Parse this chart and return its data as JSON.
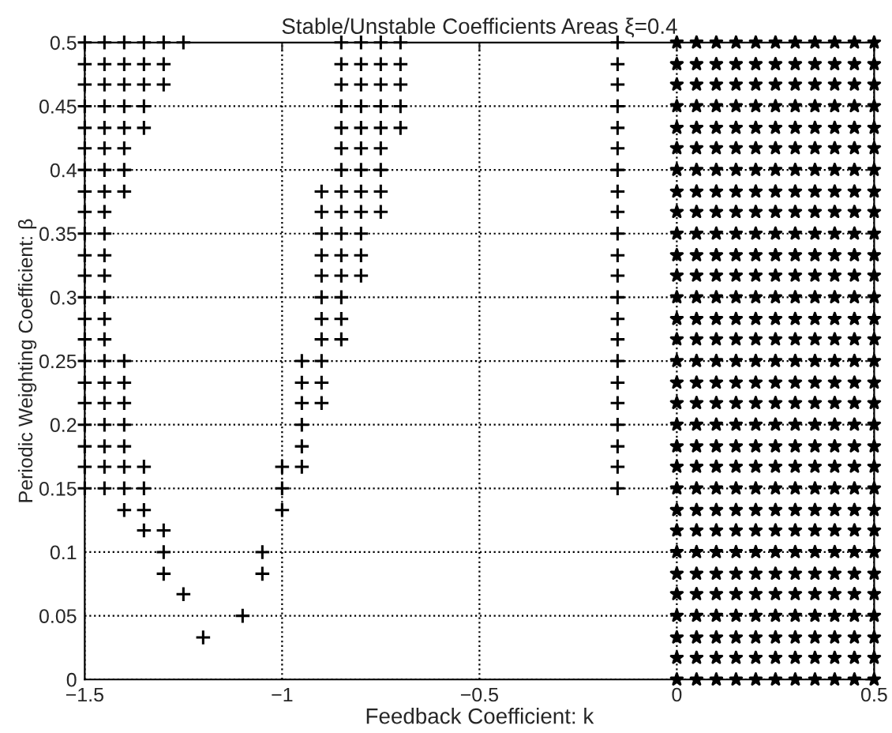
{
  "chart_data": {
    "type": "scatter",
    "title": "Stable/Unstable Coefficients Areas ξ=0.4",
    "xlabel": "Feedback Coefficient: k",
    "ylabel": "Periodic Weighting Coefficient: β",
    "xlim": [
      -1.5,
      0.5
    ],
    "ylim": [
      0,
      0.5
    ],
    "xticks": [
      {
        "value": -1.5,
        "label": "−1.5"
      },
      {
        "value": -1,
        "label": "−1"
      },
      {
        "value": -0.5,
        "label": "−0.5"
      },
      0,
      0.5
    ],
    "yticks": [
      0,
      0.05,
      0.1,
      0.15,
      0.2,
      0.25,
      0.3,
      0.35,
      0.4,
      0.45,
      0.5
    ],
    "grid": true,
    "series": [
      {
        "color": "#000000",
        "marker": "cross",
        "x": [
          -1.5,
          -1.45,
          -1.4,
          -1.35,
          -1.3,
          -1.25,
          -1.5,
          -1.45,
          -1.4,
          -1.35,
          -1.3,
          -1.5,
          -1.45,
          -1.4,
          -1.35,
          -1.3,
          -1.5,
          -1.45,
          -1.4,
          -1.35,
          -1.5,
          -1.45,
          -1.4,
          -1.35,
          -1.5,
          -1.45,
          -1.4,
          -1.5,
          -1.45,
          -1.4,
          -1.5,
          -1.45,
          -1.4,
          -1.5,
          -1.45,
          -1.5,
          -1.45,
          -1.5,
          -1.45,
          -1.5,
          -1.45,
          -1.5,
          -1.45,
          -1.5,
          -1.45,
          -1.5,
          -1.45,
          -1.5,
          -1.45,
          -1.4,
          -1.5,
          -1.45,
          -1.4,
          -1.5,
          -1.45,
          -1.4,
          -1.5,
          -1.45,
          -1.4,
          -1.5,
          -1.45,
          -1.4,
          -1.5,
          -1.45,
          -1.4,
          -1.35,
          -1.5,
          -1.45,
          -1.4,
          -1.35,
          -1.4,
          -1.35,
          -1.35,
          -1.3,
          -1.3,
          -1.3,
          -1.25,
          -1.1,
          -1.2
        ],
        "values": [
          0.5,
          0.5,
          0.5,
          0.5,
          0.5,
          0.5,
          0.483,
          0.483,
          0.483,
          0.483,
          0.483,
          0.467,
          0.467,
          0.467,
          0.467,
          0.467,
          0.45,
          0.45,
          0.45,
          0.45,
          0.433,
          0.433,
          0.433,
          0.433,
          0.417,
          0.417,
          0.417,
          0.4,
          0.4,
          0.4,
          0.383,
          0.383,
          0.383,
          0.367,
          0.367,
          0.35,
          0.35,
          0.333,
          0.333,
          0.317,
          0.317,
          0.3,
          0.3,
          0.283,
          0.283,
          0.267,
          0.267,
          0.25,
          0.25,
          0.25,
          0.233,
          0.233,
          0.233,
          0.217,
          0.217,
          0.217,
          0.2,
          0.2,
          0.2,
          0.183,
          0.183,
          0.183,
          0.167,
          0.167,
          0.167,
          0.167,
          0.15,
          0.15,
          0.15,
          0.15,
          0.133,
          0.133,
          0.117,
          0.117,
          0.1,
          0.083,
          0.067,
          0.05,
          0.033
        ]
      },
      {
        "color": "#000000",
        "marker": "cross",
        "x": [
          -0.85,
          -0.8,
          -0.75,
          -0.7,
          -0.85,
          -0.8,
          -0.75,
          -0.7,
          -0.85,
          -0.8,
          -0.75,
          -0.7,
          -0.85,
          -0.8,
          -0.75,
          -0.7,
          -0.85,
          -0.8,
          -0.75,
          -0.7,
          -0.85,
          -0.8,
          -0.75,
          -0.85,
          -0.8,
          -0.75,
          -0.9,
          -0.85,
          -0.8,
          -0.75,
          -0.9,
          -0.85,
          -0.8,
          -0.75,
          -0.9,
          -0.85,
          -0.8,
          -0.9,
          -0.85,
          -0.8,
          -0.9,
          -0.85,
          -0.8,
          -0.9,
          -0.85,
          -0.9,
          -0.85,
          -0.9,
          -0.85,
          -0.95,
          -0.9,
          -0.95,
          -0.9,
          -0.95,
          -0.9,
          -0.95,
          -0.95,
          -1,
          -0.95,
          -1,
          -1,
          -1.05,
          -1.05
        ],
        "values": [
          0.5,
          0.5,
          0.5,
          0.5,
          0.483,
          0.483,
          0.483,
          0.483,
          0.467,
          0.467,
          0.467,
          0.467,
          0.45,
          0.45,
          0.45,
          0.45,
          0.433,
          0.433,
          0.433,
          0.433,
          0.417,
          0.417,
          0.417,
          0.4,
          0.4,
          0.4,
          0.383,
          0.383,
          0.383,
          0.383,
          0.367,
          0.367,
          0.367,
          0.367,
          0.35,
          0.35,
          0.35,
          0.333,
          0.333,
          0.333,
          0.317,
          0.317,
          0.317,
          0.3,
          0.3,
          0.283,
          0.283,
          0.267,
          0.267,
          0.25,
          0.25,
          0.233,
          0.233,
          0.217,
          0.217,
          0.2,
          0.183,
          0.167,
          0.167,
          0.15,
          0.133,
          0.1,
          0.083
        ]
      },
      {
        "color": "#000000",
        "marker": "cross",
        "x": [
          -0.15,
          -0.15,
          -0.15,
          -0.15,
          -0.15,
          -0.15,
          -0.15,
          -0.15,
          -0.15,
          -0.15,
          -0.15,
          -0.15,
          -0.15,
          -0.15,
          -0.15,
          -0.15,
          -0.15,
          -0.15,
          -0.15,
          -0.15,
          -0.15,
          -0.15
        ],
        "values": [
          0.15,
          0.167,
          0.183,
          0.2,
          0.217,
          0.233,
          0.25,
          0.267,
          0.283,
          0.3,
          0.317,
          0.333,
          0.35,
          0.367,
          0.383,
          0.4,
          0.417,
          0.433,
          0.45,
          0.467,
          0.483,
          0.5
        ]
      },
      {
        "color": "#000000",
        "marker": "star",
        "x": [
          0,
          0,
          0,
          0,
          0,
          0,
          0,
          0,
          0,
          0,
          0,
          0,
          0,
          0,
          0,
          0,
          0,
          0,
          0,
          0,
          0,
          0,
          0,
          0,
          0,
          0,
          0,
          0,
          0,
          0,
          0,
          0.05,
          0.05,
          0.05,
          0.05,
          0.05,
          0.05,
          0.05,
          0.05,
          0.05,
          0.05,
          0.05,
          0.05,
          0.05,
          0.05,
          0.05,
          0.05,
          0.05,
          0.05,
          0.05,
          0.05,
          0.05,
          0.05,
          0.05,
          0.05,
          0.05,
          0.05,
          0.05,
          0.05,
          0.05,
          0.05,
          0.05,
          0.1,
          0.1,
          0.1,
          0.1,
          0.1,
          0.1,
          0.1,
          0.1,
          0.1,
          0.1,
          0.1,
          0.1,
          0.1,
          0.1,
          0.1,
          0.1,
          0.1,
          0.1,
          0.1,
          0.1,
          0.1,
          0.1,
          0.1,
          0.1,
          0.1,
          0.1,
          0.1,
          0.1,
          0.1,
          0.1,
          0.1,
          0.15,
          0.15,
          0.15,
          0.15,
          0.15,
          0.15,
          0.15,
          0.15,
          0.15,
          0.15,
          0.15,
          0.15,
          0.15,
          0.15,
          0.15,
          0.15,
          0.15,
          0.15,
          0.15,
          0.15,
          0.15,
          0.15,
          0.15,
          0.15,
          0.15,
          0.15,
          0.15,
          0.15,
          0.15,
          0.15,
          0.15,
          0.2,
          0.2,
          0.2,
          0.2,
          0.2,
          0.2,
          0.2,
          0.2,
          0.2,
          0.2,
          0.2,
          0.2,
          0.2,
          0.2,
          0.2,
          0.2,
          0.2,
          0.2,
          0.2,
          0.2,
          0.2,
          0.2,
          0.2,
          0.2,
          0.2,
          0.2,
          0.2,
          0.2,
          0.2,
          0.2,
          0.2,
          0.25,
          0.25,
          0.25,
          0.25,
          0.25,
          0.25,
          0.25,
          0.25,
          0.25,
          0.25,
          0.25,
          0.25,
          0.25,
          0.25,
          0.25,
          0.25,
          0.25,
          0.25,
          0.25,
          0.25,
          0.25,
          0.25,
          0.25,
          0.25,
          0.25,
          0.25,
          0.25,
          0.25,
          0.25,
          0.25,
          0.25,
          0.3,
          0.3,
          0.3,
          0.3,
          0.3,
          0.3,
          0.3,
          0.3,
          0.3,
          0.3,
          0.3,
          0.3,
          0.3,
          0.3,
          0.3,
          0.3,
          0.3,
          0.3,
          0.3,
          0.3,
          0.3,
          0.3,
          0.3,
          0.3,
          0.3,
          0.3,
          0.3,
          0.3,
          0.3,
          0.3,
          0.3,
          0.35,
          0.35,
          0.35,
          0.35,
          0.35,
          0.35,
          0.35,
          0.35,
          0.35,
          0.35,
          0.35,
          0.35,
          0.35,
          0.35,
          0.35,
          0.35,
          0.35,
          0.35,
          0.35,
          0.35,
          0.35,
          0.35,
          0.35,
          0.35,
          0.35,
          0.35,
          0.35,
          0.35,
          0.35,
          0.35,
          0.35,
          0.4,
          0.4,
          0.4,
          0.4,
          0.4,
          0.4,
          0.4,
          0.4,
          0.4,
          0.4,
          0.4,
          0.4,
          0.4,
          0.4,
          0.4,
          0.4,
          0.4,
          0.4,
          0.4,
          0.4,
          0.4,
          0.4,
          0.4,
          0.4,
          0.4,
          0.4,
          0.4,
          0.4,
          0.4,
          0.4,
          0.4,
          0.45,
          0.45,
          0.45,
          0.45,
          0.45,
          0.45,
          0.45,
          0.45,
          0.45,
          0.45,
          0.45,
          0.45,
          0.45,
          0.45,
          0.45,
          0.45,
          0.45,
          0.45,
          0.45,
          0.45,
          0.45,
          0.45,
          0.45,
          0.45,
          0.45,
          0.45,
          0.45,
          0.45,
          0.45,
          0.45,
          0.45,
          0.5,
          0.5,
          0.5,
          0.5,
          0.5,
          0.5,
          0.5,
          0.5,
          0.5,
          0.5,
          0.5,
          0.5,
          0.5,
          0.5,
          0.5,
          0.5,
          0.5,
          0.5,
          0.5,
          0.5,
          0.5,
          0.5,
          0.5,
          0.5,
          0.5,
          0.5,
          0.5,
          0.5,
          0.5,
          0.5,
          0.5
        ],
        "values": [
          0,
          0.017,
          0.033,
          0.05,
          0.067,
          0.083,
          0.1,
          0.117,
          0.133,
          0.15,
          0.167,
          0.183,
          0.2,
          0.217,
          0.233,
          0.25,
          0.267,
          0.283,
          0.3,
          0.317,
          0.333,
          0.35,
          0.367,
          0.383,
          0.4,
          0.417,
          0.433,
          0.45,
          0.467,
          0.483,
          0.5,
          0,
          0.017,
          0.033,
          0.05,
          0.067,
          0.083,
          0.1,
          0.117,
          0.133,
          0.15,
          0.167,
          0.183,
          0.2,
          0.217,
          0.233,
          0.25,
          0.267,
          0.283,
          0.3,
          0.317,
          0.333,
          0.35,
          0.367,
          0.383,
          0.4,
          0.417,
          0.433,
          0.45,
          0.467,
          0.483,
          0.5,
          0,
          0.017,
          0.033,
          0.05,
          0.067,
          0.083,
          0.1,
          0.117,
          0.133,
          0.15,
          0.167,
          0.183,
          0.2,
          0.217,
          0.233,
          0.25,
          0.267,
          0.283,
          0.3,
          0.317,
          0.333,
          0.35,
          0.367,
          0.383,
          0.4,
          0.417,
          0.433,
          0.45,
          0.467,
          0.483,
          0.5,
          0,
          0.017,
          0.033,
          0.05,
          0.067,
          0.083,
          0.1,
          0.117,
          0.133,
          0.15,
          0.167,
          0.183,
          0.2,
          0.217,
          0.233,
          0.25,
          0.267,
          0.283,
          0.3,
          0.317,
          0.333,
          0.35,
          0.367,
          0.383,
          0.4,
          0.417,
          0.433,
          0.45,
          0.467,
          0.483,
          0.5,
          0,
          0.017,
          0.033,
          0.05,
          0.067,
          0.083,
          0.1,
          0.117,
          0.133,
          0.15,
          0.167,
          0.183,
          0.2,
          0.217,
          0.233,
          0.25,
          0.267,
          0.283,
          0.3,
          0.317,
          0.333,
          0.35,
          0.367,
          0.383,
          0.4,
          0.417,
          0.433,
          0.45,
          0.467,
          0.483,
          0.5,
          0,
          0.017,
          0.033,
          0.05,
          0.067,
          0.083,
          0.1,
          0.117,
          0.133,
          0.15,
          0.167,
          0.183,
          0.2,
          0.217,
          0.233,
          0.25,
          0.267,
          0.283,
          0.3,
          0.317,
          0.333,
          0.35,
          0.367,
          0.383,
          0.4,
          0.417,
          0.433,
          0.45,
          0.467,
          0.483,
          0.5,
          0,
          0.017,
          0.033,
          0.05,
          0.067,
          0.083,
          0.1,
          0.117,
          0.133,
          0.15,
          0.167,
          0.183,
          0.2,
          0.217,
          0.233,
          0.25,
          0.267,
          0.283,
          0.3,
          0.317,
          0.333,
          0.35,
          0.367,
          0.383,
          0.4,
          0.417,
          0.433,
          0.45,
          0.467,
          0.483,
          0.5,
          0,
          0.017,
          0.033,
          0.05,
          0.067,
          0.083,
          0.1,
          0.117,
          0.133,
          0.15,
          0.167,
          0.183,
          0.2,
          0.217,
          0.233,
          0.25,
          0.267,
          0.283,
          0.3,
          0.317,
          0.333,
          0.35,
          0.367,
          0.383,
          0.4,
          0.417,
          0.433,
          0.45,
          0.467,
          0.483,
          0.5,
          0,
          0.017,
          0.033,
          0.05,
          0.067,
          0.083,
          0.1,
          0.117,
          0.133,
          0.15,
          0.167,
          0.183,
          0.2,
          0.217,
          0.233,
          0.25,
          0.267,
          0.283,
          0.3,
          0.317,
          0.333,
          0.35,
          0.367,
          0.383,
          0.4,
          0.417,
          0.433,
          0.45,
          0.467,
          0.483,
          0.5,
          0,
          0.017,
          0.033,
          0.05,
          0.067,
          0.083,
          0.1,
          0.117,
          0.133,
          0.15,
          0.167,
          0.183,
          0.2,
          0.217,
          0.233,
          0.25,
          0.267,
          0.283,
          0.3,
          0.317,
          0.333,
          0.35,
          0.367,
          0.383,
          0.4,
          0.417,
          0.433,
          0.45,
          0.467,
          0.483,
          0.5,
          0,
          0.017,
          0.033,
          0.05,
          0.067,
          0.083,
          0.1,
          0.117,
          0.133,
          0.15,
          0.167,
          0.183,
          0.2,
          0.217,
          0.233,
          0.25,
          0.267,
          0.283,
          0.3,
          0.317,
          0.333,
          0.35,
          0.367,
          0.383,
          0.4,
          0.417,
          0.433,
          0.45,
          0.467,
          0.483,
          0.5
        ]
      }
    ]
  }
}
